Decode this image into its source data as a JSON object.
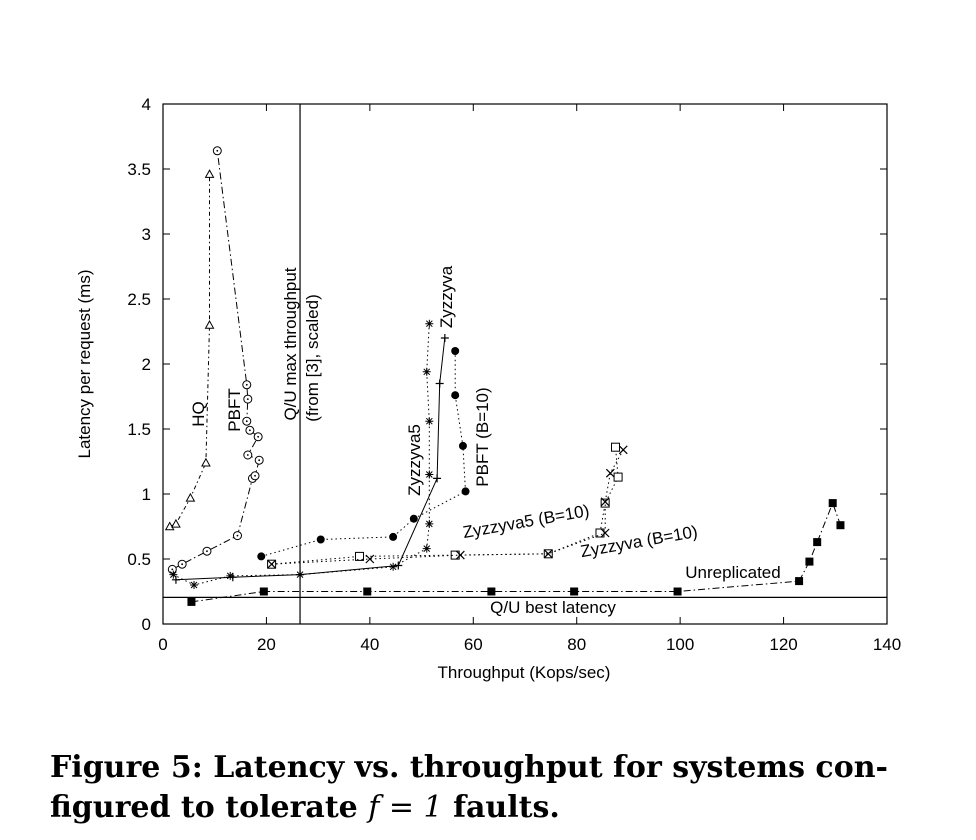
{
  "chart_data": {
    "type": "scatter",
    "xlabel": "Throughput (Kops/sec)",
    "ylabel": "Latency per request (ms)",
    "xlim": [
      0,
      140
    ],
    "ylim": [
      0,
      4
    ],
    "xticks": [
      0,
      20,
      40,
      60,
      80,
      100,
      120,
      140
    ],
    "yticks": [
      0,
      0.5,
      1,
      1.5,
      2,
      2.5,
      3,
      3.5,
      4
    ],
    "xtick_labels": [
      "0",
      "20",
      "40",
      "60",
      "80",
      "100",
      "120",
      "140"
    ],
    "ytick_labels": [
      "0",
      "0.5",
      "1",
      "1.5",
      "2",
      "2.5",
      "3",
      "3.5",
      "4"
    ],
    "grid": false,
    "legend": "none (series labelled inline)",
    "series": [
      {
        "name": "HQ",
        "marker": "triangle",
        "line": "dotted-dashed",
        "x": [
          1.3,
          2.5,
          5.3,
          8.3,
          9.0,
          9.0
        ],
        "y": [
          0.75,
          0.77,
          0.97,
          1.24,
          2.3,
          3.46
        ]
      },
      {
        "name": "PBFT",
        "marker": "open-circle",
        "line": "dash-dot",
        "x": [
          1.8,
          3.7,
          8.5,
          14.4,
          17.3,
          17.8,
          18.6,
          16.4,
          18.4,
          16.8,
          16.2,
          16.4,
          16.2,
          10.5
        ],
        "y": [
          0.42,
          0.46,
          0.56,
          0.68,
          1.12,
          1.14,
          1.26,
          1.3,
          1.44,
          1.49,
          1.56,
          1.73,
          1.84,
          3.64
        ]
      },
      {
        "name": "Zyzzyva",
        "marker": "plus",
        "line": "solid",
        "x": [
          2.5,
          13.5,
          26.5,
          45.5,
          53.0,
          53.5,
          54.5
        ],
        "y": [
          0.34,
          0.36,
          0.38,
          0.45,
          1.12,
          1.85,
          2.2
        ]
      },
      {
        "name": "Zyzzyva5",
        "marker": "asterisk",
        "line": "dotted",
        "x": [
          2.0,
          6.0,
          13.0,
          26.5,
          44.5,
          51.0,
          51.5,
          51.5,
          51.5,
          51.0,
          51.5
        ],
        "y": [
          0.38,
          0.3,
          0.37,
          0.38,
          0.44,
          0.58,
          0.77,
          1.15,
          1.56,
          1.94,
          2.31
        ]
      },
      {
        "name": "PBFT (B=10)",
        "marker": "filled-circle",
        "line": "dotted",
        "x": [
          19.0,
          30.5,
          44.5,
          48.5,
          58.5,
          58.0,
          56.5,
          56.5
        ],
        "y": [
          0.52,
          0.65,
          0.67,
          0.81,
          1.02,
          1.37,
          1.76,
          2.1
        ]
      },
      {
        "name": "Zyzzyva5 (B=10)",
        "marker": "open-square",
        "line": "dotted",
        "x": [
          21.0,
          38.0,
          56.5,
          74.5,
          84.5,
          85.5,
          88.0,
          87.5
        ],
        "y": [
          0.46,
          0.52,
          0.53,
          0.54,
          0.7,
          0.93,
          1.13,
          1.36
        ]
      },
      {
        "name": "Zyzzyva (B=10)",
        "marker": "cross",
        "line": "dotted",
        "x": [
          21.0,
          40.0,
          57.5,
          74.5,
          85.5,
          85.5,
          86.5,
          89.0
        ],
        "y": [
          0.46,
          0.5,
          0.53,
          0.54,
          0.7,
          0.94,
          1.16,
          1.34
        ]
      },
      {
        "name": "Unreplicated",
        "marker": "filled-square",
        "line": "dash-dot",
        "x": [
          5.5,
          19.5,
          39.5,
          63.5,
          79.5,
          99.5,
          123.0,
          125.0,
          126.5,
          129.5,
          131.0
        ],
        "y": [
          0.17,
          0.25,
          0.25,
          0.25,
          0.25,
          0.25,
          0.33,
          0.48,
          0.63,
          0.93,
          0.76
        ]
      }
    ],
    "reference_lines": [
      {
        "label_line1": "Q/U max throughput",
        "label_line2": "(from [3], scaled)",
        "axis": "x",
        "value": 26.5
      },
      {
        "label": "Q/U best latency",
        "axis": "y",
        "value": 0.205
      }
    ]
  },
  "caption": {
    "prefix": "Figure 5: Latency vs. throughput for systems con-figured to tolerate",
    "math": "f = 1",
    "suffix": "faults."
  }
}
